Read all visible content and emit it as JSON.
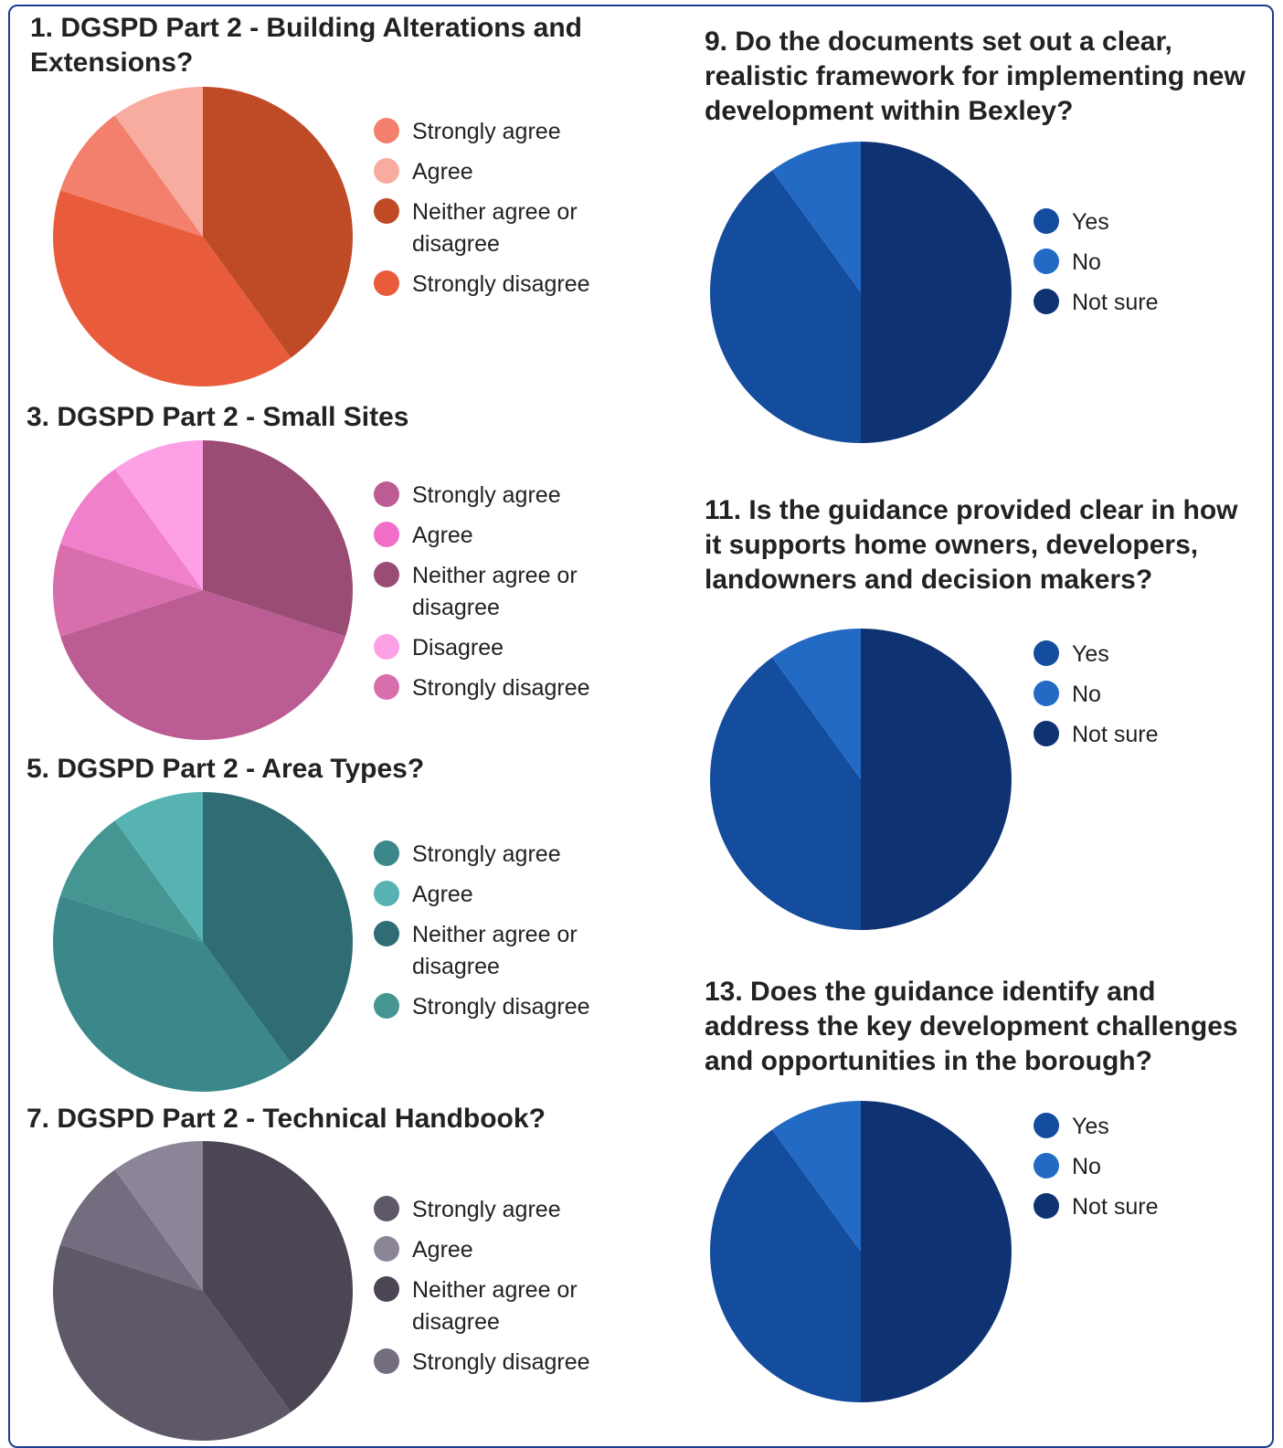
{
  "charts_page": {},
  "chart_data": [
    {
      "type": "pie",
      "title": "1. DGSPD Part 2 - Building Alterations and Extensions?",
      "labels": [
        "Neither agree or disagree",
        "Strongly disagree",
        "Strongly agree",
        "Agree"
      ],
      "values": [
        40,
        40,
        10,
        10
      ],
      "colors": [
        "#bf4a26",
        "#e85b3b",
        "#f2806c",
        "#f8aca0"
      ],
      "legend": [
        "Strongly agree",
        "Agree",
        "Neither agree or disagree",
        "Strongly disagree"
      ],
      "legend_colors": [
        "#f2806c",
        "#f8aca0",
        "#bf4a26",
        "#e85b3b"
      ],
      "legend_position": "right"
    },
    {
      "type": "pie",
      "title": "3. DGSPD Part 2 - Small Sites",
      "labels": [
        "Neither agree or disagree",
        "Strongly agree",
        "Strongly disagree",
        "Agree",
        "Disagree"
      ],
      "values": [
        30,
        40,
        10,
        10,
        10
      ],
      "colors": [
        "#9a4c74",
        "#bc5c94",
        "#d86eac",
        "#f080cc",
        "#fda0e6"
      ],
      "legend": [
        "Strongly agree",
        "Agree",
        "Neither agree or disagree",
        "Disagree",
        "Strongly disagree"
      ],
      "legend_colors": [
        "#bc5c94",
        "#f06ec8",
        "#9a4c74",
        "#fda0e6",
        "#d86eac"
      ],
      "legend_position": "right"
    },
    {
      "type": "pie",
      "title": "5. DGSPD Part 2 - Area Types?",
      "labels": [
        "Neither agree or disagree",
        "Strongly disagree",
        "Strongly agree",
        "Agree"
      ],
      "values": [
        40,
        40,
        10,
        10
      ],
      "colors": [
        "#2f6c74",
        "#3b8789",
        "#459592",
        "#56b3b2"
      ],
      "legend": [
        "Strongly agree",
        "Agree",
        "Neither agree or disagree",
        "Strongly disagree"
      ],
      "legend_colors": [
        "#3b8789",
        "#56b3b2",
        "#2f6c74",
        "#459592"
      ],
      "legend_position": "right"
    },
    {
      "type": "pie",
      "title": "7. DGSPD Part 2 - Technical Handbook?",
      "labels": [
        "Neither agree or disagree",
        "Strongly agree",
        "Strongly disagree",
        "Agree"
      ],
      "values": [
        40,
        40,
        10,
        10
      ],
      "colors": [
        "#4b4554",
        "#5e5868",
        "#746d80",
        "#8b8597"
      ],
      "legend": [
        "Strongly agree",
        "Agree",
        "Neither agree or disagree",
        "Strongly disagree"
      ],
      "legend_colors": [
        "#5e5868",
        "#8b8597",
        "#4b4554",
        "#746d80"
      ],
      "legend_position": "right"
    },
    {
      "type": "pie",
      "title": "9. Do the documents set out a clear, realistic framework for implementing new development within Bexley?",
      "labels": [
        "Not sure",
        "Yes",
        "No"
      ],
      "values": [
        50,
        40,
        10
      ],
      "colors": [
        "#0e3272",
        "#144c9e",
        "#236ac4"
      ],
      "legend": [
        "Yes",
        "No",
        "Not sure"
      ],
      "legend_colors": [
        "#144c9e",
        "#236ac4",
        "#0e3272"
      ],
      "legend_position": "right"
    },
    {
      "type": "pie",
      "title": "11. Is the guidance provided clear in how it supports home owners, developers, landowners and decision makers?",
      "labels": [
        "Not sure",
        "Yes",
        "No"
      ],
      "values": [
        50,
        40,
        10
      ],
      "colors": [
        "#0e3272",
        "#144c9e",
        "#236ac4"
      ],
      "legend": [
        "Yes",
        "No",
        "Not sure"
      ],
      "legend_colors": [
        "#144c9e",
        "#236ac4",
        "#0e3272"
      ],
      "legend_position": "right"
    },
    {
      "type": "pie",
      "title": "13. Does the guidance identify and address the key development challenges and opportunities in the borough?",
      "labels": [
        "Not sure",
        "Yes",
        "No"
      ],
      "values": [
        50,
        40,
        10
      ],
      "colors": [
        "#0e3272",
        "#144c9e",
        "#236ac4"
      ],
      "legend": [
        "Yes",
        "No",
        "Not sure"
      ],
      "legend_colors": [
        "#144c9e",
        "#236ac4",
        "#0e3272"
      ],
      "legend_position": "right"
    }
  ]
}
